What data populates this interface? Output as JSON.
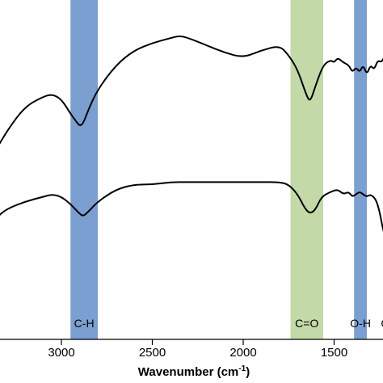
{
  "chart_data": {
    "type": "line",
    "xlabel": "Wavenumber (cm",
    "xlabel_sup": "-1",
    "xlabel_close": ")",
    "x_reversed": true,
    "xlim": [
      3500,
      1200
    ],
    "x_ticks": [
      {
        "value": 3000,
        "label": "3000"
      },
      {
        "value": 2500,
        "label": "2500"
      },
      {
        "value": 2000,
        "label": "2000"
      },
      {
        "value": 1500,
        "label": "1500"
      }
    ],
    "grid": false,
    "legend": "none",
    "bands": [
      {
        "x0": 2950,
        "x1": 2800,
        "color": "#7b9fd0",
        "label": "C-H"
      },
      {
        "x0": 1740,
        "x1": 1560,
        "color": "#c4d9a8",
        "label": "C=O"
      },
      {
        "x0": 1390,
        "x1": 1320,
        "color": "#7b9fd0",
        "label": "O-H"
      },
      {
        "x0": 1230,
        "x1": 1190,
        "color": "#ffffff",
        "label": "C-"
      }
    ],
    "series": [
      {
        "points": [
          [
            3500,
            0.34
          ],
          [
            3400,
            0.4
          ],
          [
            3300,
            0.53
          ],
          [
            3200,
            0.63
          ],
          [
            3100,
            0.67
          ],
          [
            3050,
            0.68
          ],
          [
            3000,
            0.66
          ],
          [
            2950,
            0.6
          ],
          [
            2920,
            0.57
          ],
          [
            2900,
            0.55
          ],
          [
            2880,
            0.56
          ],
          [
            2850,
            0.62
          ],
          [
            2800,
            0.7
          ],
          [
            2700,
            0.8
          ],
          [
            2600,
            0.86
          ],
          [
            2500,
            0.89
          ],
          [
            2400,
            0.91
          ],
          [
            2350,
            0.92
          ],
          [
            2300,
            0.91
          ],
          [
            2200,
            0.88
          ],
          [
            2100,
            0.85
          ],
          [
            2000,
            0.83
          ],
          [
            1900,
            0.86
          ],
          [
            1800,
            0.88
          ],
          [
            1750,
            0.84
          ],
          [
            1700,
            0.78
          ],
          [
            1650,
            0.67
          ],
          [
            1630,
            0.65
          ],
          [
            1600,
            0.72
          ],
          [
            1560,
            0.8
          ],
          [
            1520,
            0.82
          ],
          [
            1500,
            0.81
          ],
          [
            1480,
            0.83
          ],
          [
            1450,
            0.81
          ],
          [
            1420,
            0.8
          ],
          [
            1400,
            0.77
          ],
          [
            1380,
            0.79
          ],
          [
            1360,
            0.77
          ],
          [
            1340,
            0.8
          ],
          [
            1320,
            0.76
          ],
          [
            1300,
            0.8
          ],
          [
            1280,
            0.78
          ],
          [
            1260,
            0.82
          ],
          [
            1240,
            0.81
          ],
          [
            1220,
            0.84
          ],
          [
            1200,
            0.85
          ]
        ]
      },
      {
        "points": [
          [
            3500,
            0.02
          ],
          [
            3450,
            0.06
          ],
          [
            3400,
            0.13
          ],
          [
            3350,
            0.18
          ],
          [
            3300,
            0.21
          ],
          [
            3200,
            0.24
          ],
          [
            3100,
            0.26
          ],
          [
            3050,
            0.27
          ],
          [
            3000,
            0.26
          ],
          [
            2950,
            0.23
          ],
          [
            2900,
            0.19
          ],
          [
            2880,
            0.18
          ],
          [
            2850,
            0.2
          ],
          [
            2800,
            0.24
          ],
          [
            2700,
            0.29
          ],
          [
            2600,
            0.31
          ],
          [
            2500,
            0.31
          ],
          [
            2400,
            0.32
          ],
          [
            2300,
            0.32
          ],
          [
            2200,
            0.32
          ],
          [
            2100,
            0.32
          ],
          [
            2000,
            0.32
          ],
          [
            1900,
            0.32
          ],
          [
            1800,
            0.32
          ],
          [
            1750,
            0.31
          ],
          [
            1700,
            0.27
          ],
          [
            1660,
            0.21
          ],
          [
            1630,
            0.19
          ],
          [
            1600,
            0.21
          ],
          [
            1570,
            0.26
          ],
          [
            1520,
            0.28
          ],
          [
            1480,
            0.29
          ],
          [
            1450,
            0.27
          ],
          [
            1420,
            0.28
          ],
          [
            1400,
            0.26
          ],
          [
            1380,
            0.27
          ],
          [
            1360,
            0.28
          ],
          [
            1340,
            0.27
          ],
          [
            1320,
            0.26
          ],
          [
            1300,
            0.27
          ],
          [
            1270,
            0.25
          ],
          [
            1250,
            0.2
          ],
          [
            1230,
            0.12
          ],
          [
            1200,
            0.05
          ]
        ]
      }
    ]
  }
}
